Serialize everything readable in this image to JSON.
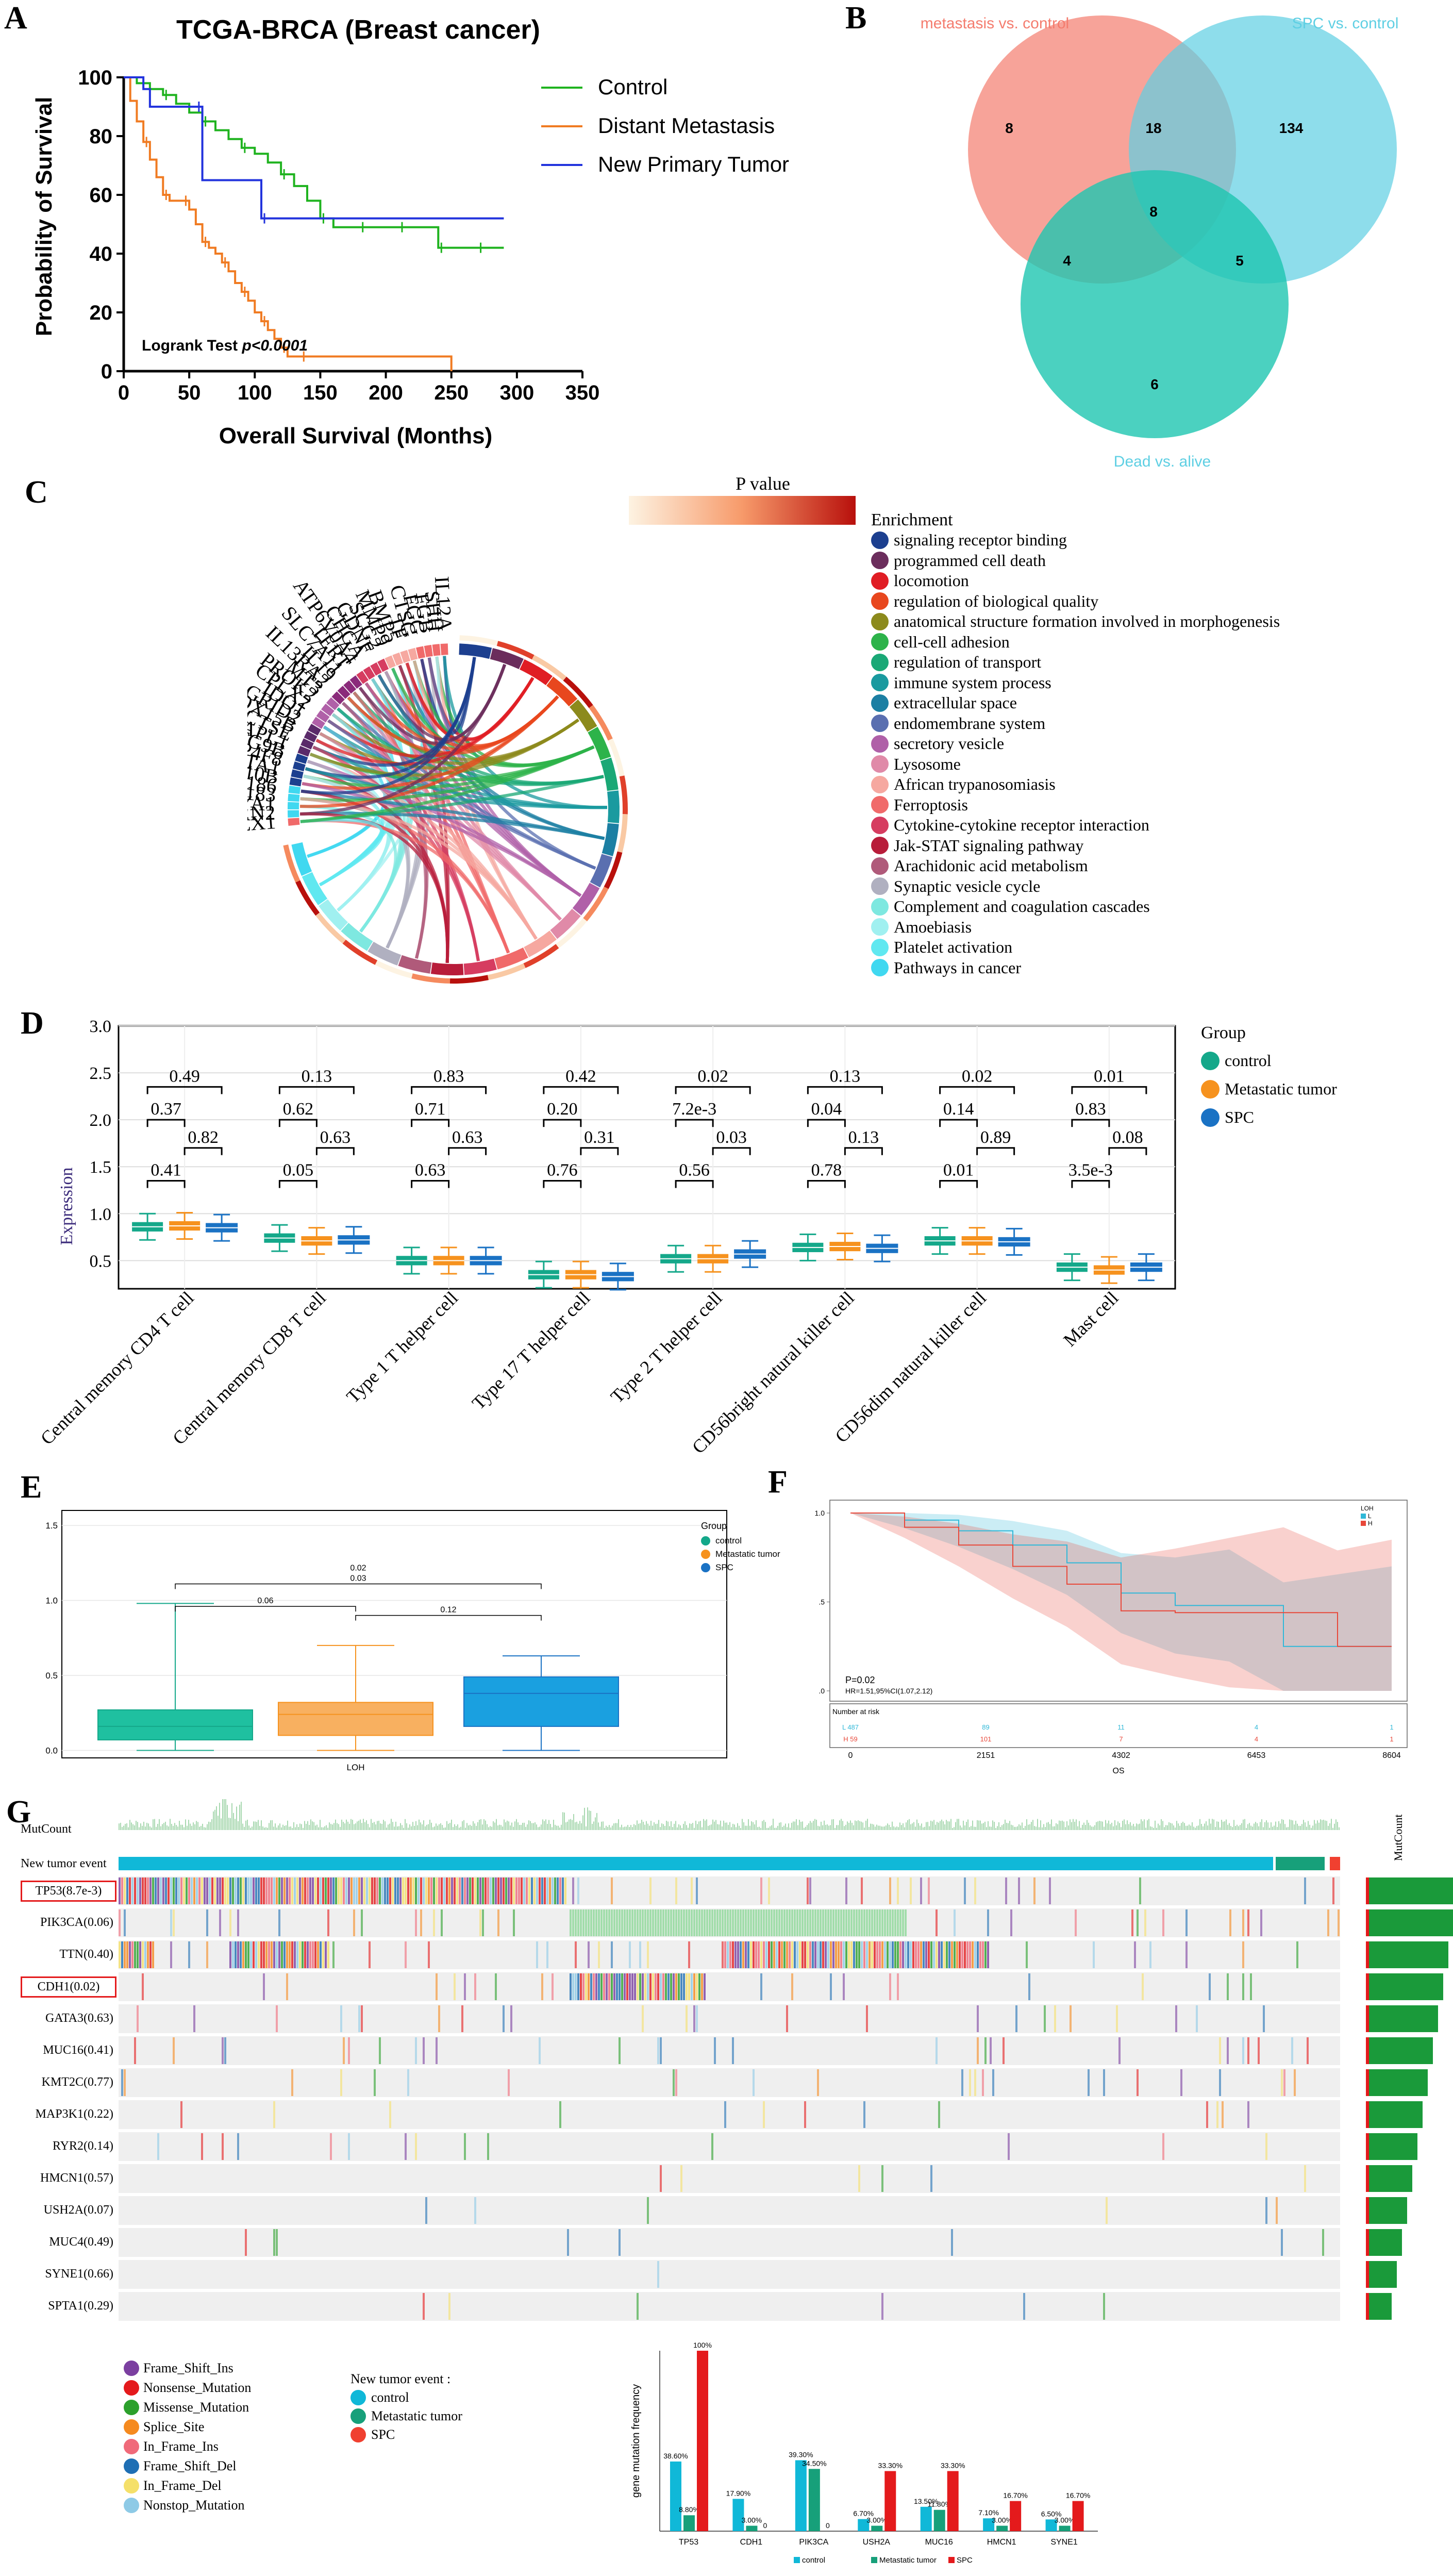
{
  "panelA": {
    "label": "A",
    "title": "TCGA-BRCA (Breast cancer)",
    "ylabel": "Probability of Survival",
    "xlabel": "Overall Survival (Months)",
    "xticks": [
      "0",
      "50",
      "100",
      "150",
      "200",
      "250",
      "300",
      "350"
    ],
    "yticks": [
      "0",
      "20",
      "40",
      "60",
      "80",
      "100"
    ],
    "test": "Logrank Test",
    "pvalue": "p<0.0001",
    "legend": [
      {
        "name": "Control",
        "color": "#1fb31f"
      },
      {
        "name": "Distant Metastasis",
        "color": "#f07b22"
      },
      {
        "name": "New Primary Tumor",
        "color": "#2233dd"
      }
    ]
  },
  "panelB": {
    "label": "B",
    "sets": [
      {
        "name": "metastasis vs. control",
        "color": "#f47c6e"
      },
      {
        "name": "SPC vs. control",
        "color": "#5ecfe3"
      },
      {
        "name": "Dead vs. alive",
        "color": "#1ec5b0"
      }
    ],
    "counts": [
      "8",
      "18",
      "134",
      "8",
      "4",
      "5",
      "6"
    ]
  },
  "panelC": {
    "label": "C",
    "pvalue_label": "P value",
    "enrichment_title": "Enrichment",
    "genes": [
      "IL12A",
      "SHH",
      "FGB",
      "FGG",
      "CTSG",
      "TF",
      "BMP5",
      "MMP9",
      "SCG2",
      "GDNF",
      "CHGA",
      "ATP6V0A4",
      "TERT",
      "SLC7A11",
      "IL19",
      "IL13RA2",
      "MT3",
      "PROK2",
      "CPLX2",
      "IDO1",
      "GRID2",
      "ALOX15B",
      "CTSE",
      "DAPL1",
      "ATG9B",
      "CYP4F8",
      "ACTA1",
      "ATP10B",
      "RNF186",
      "RNF183",
      "EYA1",
      "ERN2",
      "BEX1"
    ],
    "terms": [
      {
        "name": "signaling receptor binding",
        "color": "#1c3f8f"
      },
      {
        "name": "programmed cell death",
        "color": "#6b2d5c"
      },
      {
        "name": "locomotion",
        "color": "#e01d24"
      },
      {
        "name": "regulation of biological quality",
        "color": "#e8471e"
      },
      {
        "name": "anatomical structure formation involved in morphogenesis",
        "color": "#8c8a1c"
      },
      {
        "name": "cell-cell adhesion",
        "color": "#2db34a"
      },
      {
        "name": "regulation of transport",
        "color": "#1aa876"
      },
      {
        "name": "immune system process",
        "color": "#1a9a9f"
      },
      {
        "name": "extracellular space",
        "color": "#1c7fa3"
      },
      {
        "name": "endomembrane system",
        "color": "#5a6fb0"
      },
      {
        "name": "secretory vesicle",
        "color": "#b060a8"
      },
      {
        "name": "Lysosome",
        "color": "#e08aa8"
      },
      {
        "name": "African trypanosomiasis",
        "color": "#f6a8a0"
      },
      {
        "name": "Ferroptosis",
        "color": "#f06a6a"
      },
      {
        "name": "Cytokine-cytokine receptor interaction",
        "color": "#d63c60"
      },
      {
        "name": "Jak-STAT signaling pathway",
        "color": "#b81c3a"
      },
      {
        "name": "Arachidonic acid metabolism",
        "color": "#b05a7a"
      },
      {
        "name": "Synaptic vesicle cycle",
        "color": "#b0b0c0"
      },
      {
        "name": "Complement and coagulation cascades",
        "color": "#7ee8e0"
      },
      {
        "name": "Amoebiasis",
        "color": "#a0f0f0"
      },
      {
        "name": "Platelet activation",
        "color": "#60e8f0"
      },
      {
        "name": "Pathways in cancer",
        "color": "#40d8f0"
      }
    ]
  },
  "panelD": {
    "label": "D",
    "ylabel": "Expression",
    "yticks": [
      "0.5",
      "1.0",
      "1.5",
      "2.0",
      "2.5",
      "3.0"
    ],
    "group_title": "Group",
    "groups": [
      {
        "name": "control",
        "color": "#14a88a"
      },
      {
        "name": "Metastatic tumor",
        "color": "#f6921e"
      },
      {
        "name": "SPC",
        "color": "#1a72c4"
      }
    ],
    "cells": [
      {
        "name": "Central memory CD4 T cell",
        "p13": "0.49",
        "p12": "0.37",
        "p23": "0.82",
        "p12b": "0.41",
        "medians": [
          0.86,
          0.87,
          0.85
        ]
      },
      {
        "name": "Central memory CD8 T cell",
        "p13": "0.13",
        "p12": "0.62",
        "p23": "0.63",
        "p12b": "0.05",
        "medians": [
          0.74,
          0.71,
          0.72
        ]
      },
      {
        "name": "Type 1 T helper cell",
        "p13": "0.83",
        "p12": "0.71",
        "p23": "0.63",
        "p12b": "0.63",
        "medians": [
          0.5,
          0.5,
          0.5
        ]
      },
      {
        "name": "Type 17 T helper cell",
        "p13": "0.42",
        "p12": "0.20",
        "p23": "0.31",
        "p12b": "0.76",
        "medians": [
          0.35,
          0.35,
          0.33
        ]
      },
      {
        "name": "Type 2 T helper cell",
        "p13": "0.02",
        "p12": "7.2e-3",
        "p23": "0.03",
        "p12b": "0.56",
        "medians": [
          0.52,
          0.52,
          0.57
        ]
      },
      {
        "name": "CD56bright natural killer cell",
        "p13": "0.13",
        "p12": "0.04",
        "p23": "0.13",
        "p12b": "0.78",
        "medians": [
          0.64,
          0.65,
          0.63
        ]
      },
      {
        "name": "CD56dim natural killer cell",
        "p13": "0.02",
        "p12": "0.14",
        "p23": "0.89",
        "p12b": "0.01",
        "medians": [
          0.71,
          0.71,
          0.7
        ]
      },
      {
        "name": "Mast cell",
        "p13": "0.01",
        "p12": "0.83",
        "p23": "0.08",
        "p12b": "3.5e-3",
        "medians": [
          0.43,
          0.4,
          0.43
        ]
      }
    ]
  },
  "panelE": {
    "label": "E",
    "xlabel": "LOH",
    "yticks": [
      "0.0",
      "0.5",
      "1.0",
      "1.5"
    ],
    "group_title": "Group",
    "groups": [
      {
        "name": "control",
        "color": "#14a88a"
      },
      {
        "name": "Metastatic tumor",
        "color": "#f6921e"
      },
      {
        "name": "SPC",
        "color": "#1a72c4"
      }
    ],
    "pvals": [
      "0.02",
      "0.03",
      "0.06",
      "0.12"
    ],
    "boxes": [
      {
        "q1": 0.07,
        "median": 0.16,
        "q3": 0.27,
        "min": 0.0,
        "max": 0.98
      },
      {
        "q1": 0.1,
        "median": 0.24,
        "q3": 0.32,
        "min": 0.0,
        "max": 0.7
      },
      {
        "q1": 0.16,
        "median": 0.38,
        "q3": 0.49,
        "min": 0.0,
        "max": 0.63
      }
    ]
  },
  "panelF": {
    "label": "F",
    "legend_title": "LOH",
    "legend": [
      "L",
      "H"
    ],
    "p": "P=0.02",
    "hr": "HR=1.51,95%CI(1.07,2.12)",
    "risk_title": "Number at risk",
    "risk_L": [
      "L 487",
      "89",
      "11",
      "4",
      "1"
    ],
    "risk_H": [
      "H 59",
      "101",
      "7",
      "4",
      "1"
    ],
    "xticks": [
      "0",
      "2151",
      "4302",
      "6453",
      "8604"
    ],
    "yticks": [
      "1.0",
      ".5",
      ".0"
    ],
    "xlabel": "OS"
  },
  "panelG": {
    "label": "G",
    "mutcount_label": "MutCount",
    "event_label": "New tumor event",
    "side_label": "MutCount",
    "genes": [
      "TP53(8.7e-3)",
      "PIK3CA(0.06)",
      "TTN(0.40)",
      "CDH1(0.02)",
      "GATA3(0.63)",
      "MUC16(0.41)",
      "KMT2C(0.77)",
      "MAP3K1(0.22)",
      "RYR2(0.14)",
      "HMCN1(0.57)",
      "USH2A(0.07)",
      "MUC4(0.49)",
      "SYNE1(0.66)",
      "SPTA1(0.29)"
    ],
    "mutation_types": [
      {
        "name": "Frame_Shift_Ins",
        "color": "#7b3fa0"
      },
      {
        "name": "Nonsense_Mutation",
        "color": "#e41a1c"
      },
      {
        "name": "Missense_Mutation",
        "color": "#2ca02c"
      },
      {
        "name": "Splice_Site",
        "color": "#f58a1f"
      },
      {
        "name": "In_Frame_Ins",
        "color": "#f06a7a"
      },
      {
        "name": "Frame_Shift_Del",
        "color": "#1f6fb4"
      },
      {
        "name": "In_Frame_Del",
        "color": "#f5e06a"
      },
      {
        "name": "Nonstop_Mutation",
        "color": "#8ecae6"
      }
    ],
    "event_title": "New tumor event :",
    "events": [
      {
        "name": "control",
        "color": "#10b8d8"
      },
      {
        "name": "Metastatic tumor",
        "color": "#17a07a"
      },
      {
        "name": "SPC",
        "color": "#f04030"
      }
    ]
  },
  "chart_data": [
    {
      "type": "line",
      "title": "TCGA-BRCA (Breast cancer)",
      "xlabel": "Overall Survival (Months)",
      "ylabel": "Probability of Survival",
      "xlim": [
        0,
        350
      ],
      "ylim": [
        0,
        100
      ],
      "series": [
        {
          "name": "Control",
          "x": [
            0,
            10,
            20,
            30,
            40,
            50,
            60,
            70,
            80,
            90,
            100,
            110,
            120,
            130,
            140,
            150,
            160,
            170,
            180,
            190,
            200,
            210,
            220,
            230,
            240,
            250,
            260,
            270,
            280,
            290
          ],
          "y": [
            100,
            98,
            96,
            94,
            91,
            88,
            85,
            82,
            79,
            76,
            74,
            71,
            67,
            63,
            58,
            52,
            49,
            49,
            49,
            49,
            49,
            49,
            49,
            49,
            42,
            42,
            42,
            42,
            42,
            42
          ]
        },
        {
          "name": "Distant Metastasis",
          "x": [
            0,
            5,
            10,
            15,
            20,
            25,
            30,
            35,
            40,
            45,
            50,
            55,
            60,
            65,
            70,
            75,
            80,
            85,
            90,
            95,
            100,
            105,
            110,
            115,
            120,
            125,
            130,
            135,
            140,
            250
          ],
          "y": [
            100,
            92,
            85,
            78,
            72,
            66,
            60,
            58,
            58,
            58,
            55,
            50,
            44,
            42,
            40,
            37,
            34,
            30,
            27,
            24,
            20,
            17,
            14,
            11,
            8,
            5,
            5,
            5,
            5,
            0
          ]
        },
        {
          "name": "New Primary Tumor",
          "x": [
            0,
            15,
            20,
            55,
            60,
            100,
            105,
            150,
            290
          ],
          "y": [
            100,
            96,
            90,
            90,
            65,
            65,
            52,
            52,
            52
          ]
        }
      ]
    },
    {
      "type": "bar",
      "title": "gene mutation frequency",
      "ylabel": "gene mutation frequency",
      "categories": [
        "TP53",
        "CDH1",
        "PIK3CA",
        "USH2A",
        "MUC16",
        "HMCN1",
        "SYNE1"
      ],
      "series": [
        {
          "name": "control",
          "values": [
            38.6,
            17.9,
            39.3,
            6.7,
            13.5,
            7.1,
            6.5
          ]
        },
        {
          "name": "Metastatic tumor",
          "values": [
            8.8,
            3.0,
            34.5,
            3.0,
            11.8,
            3.0,
            3.0
          ]
        },
        {
          "name": "SPC",
          "values": [
            100,
            0,
            0,
            33.3,
            33.3,
            16.7,
            16.7
          ]
        }
      ],
      "labels": [
        [
          "38.60%",
          "8.80%",
          "100%"
        ],
        [
          "17.90%",
          "3.00%",
          "0"
        ],
        [
          "39.30%",
          "34.50%",
          "0"
        ],
        [
          "6.70%",
          "3.00%",
          "33.30%"
        ],
        [
          "13.50%",
          "11.80%",
          "33.30%"
        ],
        [
          "7.10%",
          "3.00%",
          "16.70%"
        ],
        [
          "6.50%",
          "3.00%",
          "16.70%"
        ]
      ],
      "legend": [
        "control",
        "Metastatic tumor",
        "SPC"
      ]
    }
  ]
}
